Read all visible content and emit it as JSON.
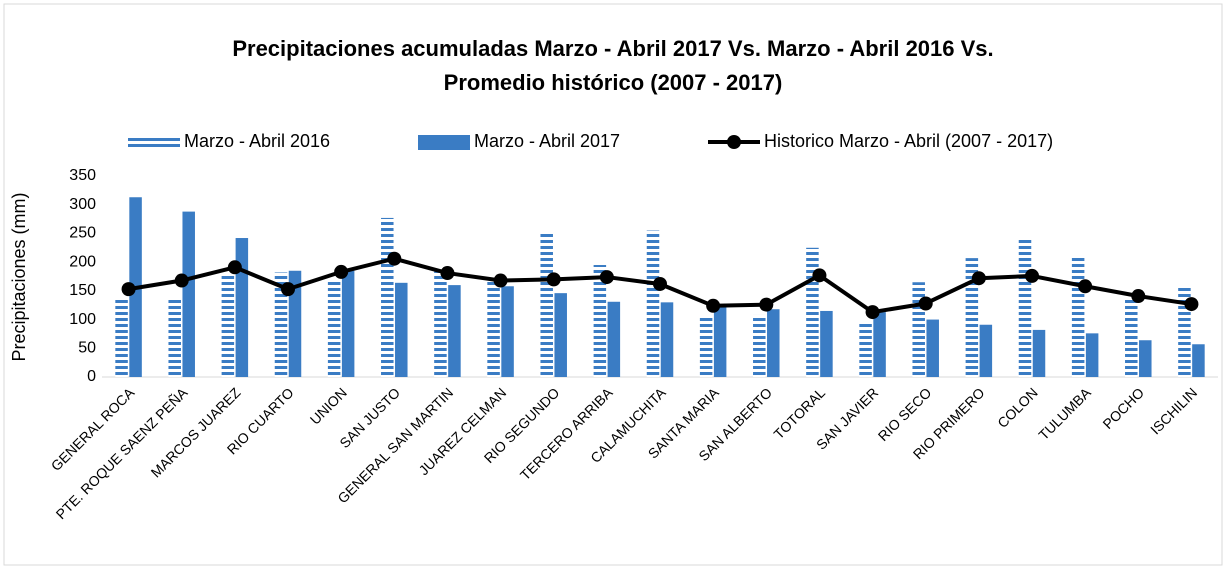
{
  "chart_data": {
    "type": "bar_line",
    "title": "Precipitaciones acumuladas Marzo - Abril 2017 Vs. Marzo - Abril 2016 Vs.",
    "subtitle": "Promedio histórico (2007 - 2017)",
    "y_label": "Precipitaciones (mm)",
    "categories": [
      "GENERAL ROCA",
      "PTE. ROQUE SAENZ PEÑA",
      "MARCOS JUAREZ",
      "RIO CUARTO",
      "UNION",
      "SAN JUSTO",
      "GENERAL SAN MARTIN",
      "JUAREZ CELMAN",
      "RIO SEGUNDO",
      "TERCERO ARRIBA",
      "CALAMUCHITA",
      "SANTA MARIA",
      "SAN ALBERTO",
      "TOTORAL",
      "SAN JAVIER",
      "RIO SECO",
      "RIO PRIMERO",
      "COLON",
      "TULUMBA",
      "POCHO",
      "ISCHILIN"
    ],
    "series": [
      {
        "name": "Marzo - Abril 2016",
        "type": "bar",
        "pattern": "striped",
        "color": "#3a7cc4",
        "values": [
          138,
          137,
          180,
          182,
          170,
          277,
          190,
          170,
          253,
          195,
          255,
          105,
          108,
          225,
          95,
          165,
          207,
          243,
          210,
          135,
          160
        ]
      },
      {
        "name": "Marzo - Abril 2017",
        "type": "bar",
        "color": "#3a7cc4",
        "values": [
          313,
          288,
          242,
          185,
          185,
          164,
          160,
          158,
          146,
          131,
          130,
          122,
          118,
          115,
          113,
          100,
          91,
          82,
          76,
          64,
          57
        ]
      },
      {
        "name": "Historico Marzo - Abril (2007 - 2017)",
        "type": "line",
        "color": "#000000",
        "values": [
          153,
          168,
          191,
          153,
          183,
          206,
          181,
          168,
          170,
          174,
          162,
          124,
          126,
          177,
          113,
          128,
          172,
          176,
          158,
          141,
          127
        ]
      }
    ],
    "ylim": [
      0,
      350
    ],
    "yticks": [
      0,
      50,
      100,
      150,
      200,
      250,
      300,
      350
    ],
    "grid": false,
    "legend": "top"
  }
}
